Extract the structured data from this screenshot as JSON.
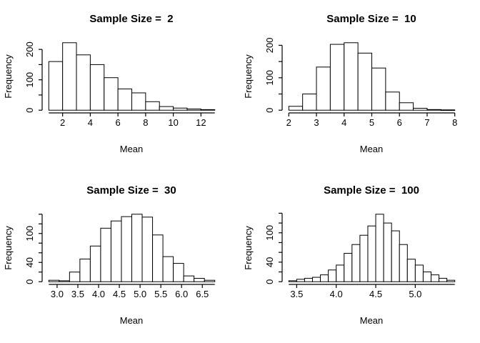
{
  "figure": {
    "background": "#ffffff",
    "axis_color": "#000000",
    "text_color": "#000000",
    "bar_fill": "#ffffff",
    "bar_stroke": "#000000",
    "layout": "2x2-grid"
  },
  "chart_data": [
    {
      "type": "bar",
      "subtype": "histogram",
      "title": "Sample Size =  2",
      "xlabel": "Mean",
      "ylabel": "Frequency",
      "bin_start": 1,
      "bin_width": 1,
      "counts": [
        160,
        222,
        182,
        150,
        107,
        70,
        57,
        28,
        12,
        7,
        4,
        2
      ],
      "xlim": [
        1,
        13
      ],
      "ylim": [
        0,
        222
      ],
      "x_ticks": [
        2,
        4,
        6,
        8,
        10,
        12
      ],
      "x_tick_labels": [
        "2",
        "4",
        "6",
        "8",
        "10",
        "12"
      ],
      "y_ticks": [
        0,
        50,
        100,
        150,
        200
      ],
      "y_tick_labels": [
        "0",
        "",
        "100",
        "",
        "200"
      ],
      "grid": false,
      "legend": false
    },
    {
      "type": "bar",
      "subtype": "histogram",
      "title": "Sample Size =  10",
      "xlabel": "Mean",
      "ylabel": "Frequency",
      "bin_start": 2,
      "bin_width": 0.5,
      "counts": [
        12,
        50,
        133,
        203,
        208,
        176,
        130,
        56,
        23,
        6,
        2,
        1
      ],
      "xlim": [
        2,
        8
      ],
      "ylim": [
        0,
        208
      ],
      "x_ticks": [
        2,
        3,
        4,
        5,
        6,
        7,
        8
      ],
      "x_tick_labels": [
        "2",
        "3",
        "4",
        "5",
        "6",
        "7",
        "8"
      ],
      "y_ticks": [
        0,
        50,
        100,
        150,
        200
      ],
      "y_tick_labels": [
        "0",
        "",
        "100",
        "",
        "200"
      ],
      "grid": false,
      "legend": false
    },
    {
      "type": "bar",
      "subtype": "histogram",
      "title": "Sample Size =  30",
      "xlabel": "Mean",
      "ylabel": "Frequency",
      "bin_start": 2.8,
      "bin_width": 0.25,
      "counts": [
        3,
        2,
        20,
        47,
        74,
        111,
        126,
        135,
        140,
        134,
        97,
        52,
        38,
        12,
        7,
        3
      ],
      "xlim": [
        2.8,
        6.8
      ],
      "ylim": [
        0,
        140
      ],
      "x_ticks": [
        3.0,
        3.5,
        4.0,
        4.5,
        5.0,
        5.5,
        6.0,
        6.5
      ],
      "x_tick_labels": [
        "3.0",
        "3.5",
        "4.0",
        "4.5",
        "5.0",
        "5.5",
        "6.0",
        "6.5"
      ],
      "y_ticks": [
        0,
        20,
        40,
        60,
        80,
        100,
        120,
        140
      ],
      "y_tick_labels": [
        "0",
        "",
        "40",
        "",
        "",
        "100",
        "",
        ""
      ],
      "grid": false,
      "legend": false
    },
    {
      "type": "bar",
      "subtype": "histogram",
      "title": "Sample Size =  100",
      "xlabel": "Mean",
      "ylabel": "Frequency",
      "bin_start": 3.4,
      "bin_width": 0.1,
      "counts": [
        2,
        5,
        7,
        9,
        14,
        24,
        34,
        58,
        76,
        95,
        114,
        138,
        120,
        104,
        76,
        46,
        34,
        20,
        14,
        7,
        3
      ],
      "xlim": [
        3.4,
        5.5
      ],
      "ylim": [
        0,
        138
      ],
      "x_ticks": [
        3.5,
        4.0,
        4.5,
        5.0
      ],
      "x_tick_labels": [
        "3.5",
        "4.0",
        "4.5",
        "5.0"
      ],
      "y_ticks": [
        0,
        20,
        40,
        60,
        80,
        100,
        120,
        140
      ],
      "y_tick_labels": [
        "0",
        "",
        "40",
        "",
        "",
        "100",
        "",
        ""
      ],
      "grid": false,
      "legend": false
    }
  ]
}
